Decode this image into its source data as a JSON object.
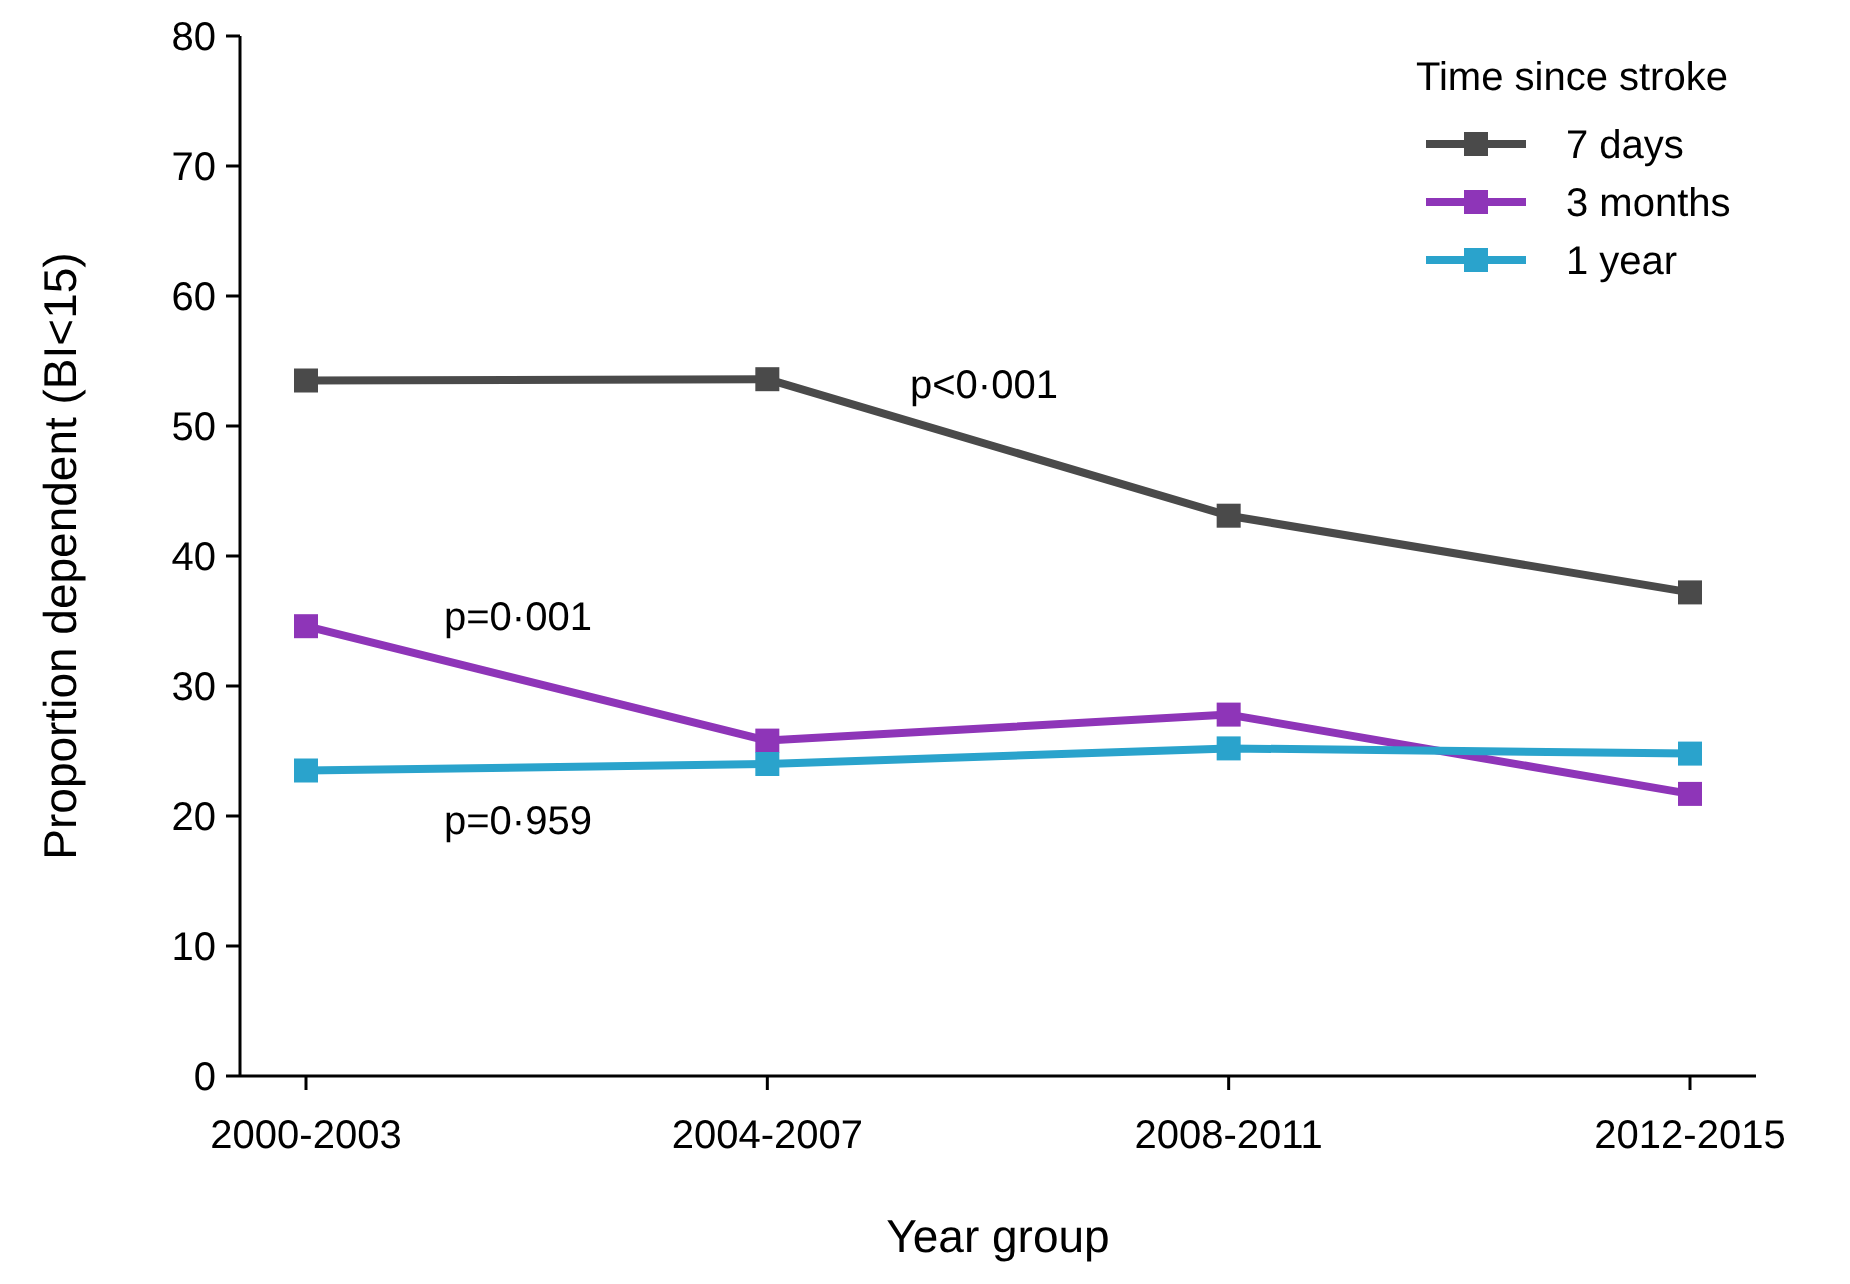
{
  "chart_data": {
    "type": "line",
    "xlabel": "Year group",
    "ylabel": "Proportion dependent (BI<15)",
    "legend_title": "Time since stroke",
    "categories": [
      "2000-2003",
      "2004-2007",
      "2008-2011",
      "2012-2015"
    ],
    "series": [
      {
        "name": "7 days",
        "color": "#4a4a4a",
        "values": [
          53.5,
          53.6,
          43.1,
          37.2
        ]
      },
      {
        "name": "3 months",
        "color": "#8e35b8",
        "values": [
          34.6,
          25.8,
          27.8,
          21.7
        ]
      },
      {
        "name": "1 year",
        "color": "#2aa3cc",
        "values": [
          23.5,
          24.0,
          25.2,
          24.8
        ]
      }
    ],
    "ylim": [
      0,
      80
    ],
    "yticks": [
      0,
      10,
      20,
      30,
      40,
      50,
      60,
      70,
      80
    ],
    "grid": false,
    "legend": "top right",
    "marker": "square",
    "line_style": "solid",
    "annotations": [
      "p<0·001",
      "p=0·001",
      "p=0·959"
    ]
  }
}
